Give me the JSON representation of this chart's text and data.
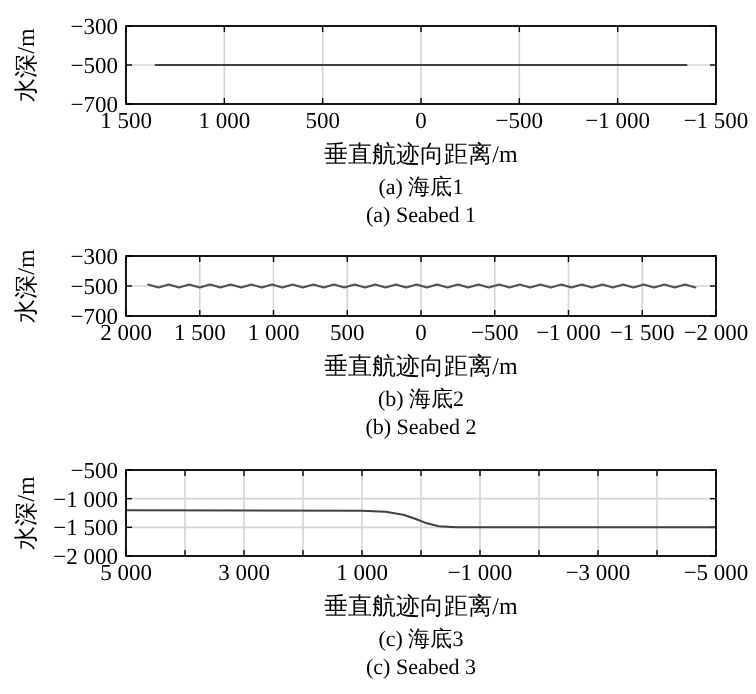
{
  "chart_data": [
    {
      "type": "line",
      "title": "(a) 海底1",
      "subtitle": "(a) Seabed 1",
      "xlabel": "垂直航迹向距离/m",
      "ylabel": "水深/m",
      "grid": true,
      "xlim": [
        1500,
        -1500
      ],
      "xticks": [
        {
          "value": 1500,
          "label": "1 500"
        },
        {
          "value": 1000,
          "label": "1 000"
        },
        {
          "value": 500,
          "label": "500"
        },
        {
          "value": 0,
          "label": "0"
        },
        {
          "value": -500,
          "label": "−500"
        },
        {
          "value": -1000,
          "label": "−1 000"
        },
        {
          "value": -1500,
          "label": "−1 500"
        }
      ],
      "ylim": [
        -700,
        -300
      ],
      "yticks": [
        {
          "value": -700,
          "label": "−700"
        },
        {
          "value": -500,
          "label": "−500"
        },
        {
          "value": -300,
          "label": "−300"
        }
      ],
      "series": [
        {
          "color": "#404040",
          "x": [
            1350,
            -1350
          ],
          "values": [
            -500,
            -500
          ]
        }
      ]
    },
    {
      "type": "line",
      "title": "(b) 海底2",
      "subtitle": "(b) Seabed 2",
      "xlabel": "垂直航迹向距离/m",
      "ylabel": "水深/m",
      "grid": true,
      "xlim": [
        2000,
        -2000
      ],
      "xticks": [
        {
          "value": 2000,
          "label": "2 000"
        },
        {
          "value": 1500,
          "label": "1 500"
        },
        {
          "value": 1000,
          "label": "1 000"
        },
        {
          "value": 500,
          "label": "500"
        },
        {
          "value": 0,
          "label": "0"
        },
        {
          "value": -500,
          "label": "−500"
        },
        {
          "value": -1000,
          "label": "−1 000"
        },
        {
          "value": -1500,
          "label": "−1 500"
        },
        {
          "value": -2000,
          "label": "−2 000"
        }
      ],
      "ylim": [
        -700,
        -300
      ],
      "yticks": [
        {
          "value": -700,
          "label": "−700"
        },
        {
          "value": -500,
          "label": "−500"
        },
        {
          "value": -300,
          "label": "−300"
        }
      ],
      "series": [
        {
          "color": "#505050",
          "x": [
            1850,
            1780,
            1710,
            1640,
            1570,
            1500,
            1430,
            1360,
            1290,
            1220,
            1150,
            1080,
            1010,
            940,
            870,
            800,
            730,
            660,
            590,
            520,
            450,
            380,
            310,
            240,
            170,
            100,
            30,
            -40,
            -110,
            -180,
            -250,
            -320,
            -390,
            -460,
            -530,
            -600,
            -670,
            -740,
            -810,
            -880,
            -950,
            -1020,
            -1090,
            -1160,
            -1230,
            -1300,
            -1370,
            -1440,
            -1510,
            -1580,
            -1650,
            -1720,
            -1790,
            -1860
          ],
          "values": [
            -490,
            -510,
            -490,
            -510,
            -490,
            -510,
            -490,
            -510,
            -490,
            -510,
            -490,
            -510,
            -490,
            -510,
            -490,
            -510,
            -490,
            -510,
            -490,
            -510,
            -490,
            -510,
            -490,
            -510,
            -490,
            -510,
            -490,
            -510,
            -490,
            -510,
            -490,
            -510,
            -490,
            -510,
            -490,
            -510,
            -490,
            -510,
            -490,
            -510,
            -490,
            -510,
            -490,
            -510,
            -490,
            -510,
            -490,
            -510,
            -490,
            -510,
            -490,
            -510,
            -490,
            -510
          ]
        }
      ]
    },
    {
      "type": "line",
      "title": "(c) 海底3",
      "subtitle": "(c) Seabed 3",
      "xlabel": "垂直航迹向距离/m",
      "ylabel": "水深/m",
      "grid": true,
      "xlim": [
        5000,
        -5000
      ],
      "xticks": [
        {
          "value": 5000,
          "label": "5 000"
        },
        {
          "value": 4000,
          "label": null
        },
        {
          "value": 3000,
          "label": "3 000"
        },
        {
          "value": 2000,
          "label": null
        },
        {
          "value": 1000,
          "label": "1 000"
        },
        {
          "value": 0,
          "label": null
        },
        {
          "value": -1000,
          "label": "−1 000"
        },
        {
          "value": -2000,
          "label": null
        },
        {
          "value": -3000,
          "label": "−3 000"
        },
        {
          "value": -4000,
          "label": null
        },
        {
          "value": -5000,
          "label": "−5 000"
        }
      ],
      "ylim": [
        -2000,
        -500
      ],
      "yticks": [
        {
          "value": -2000,
          "label": "−2 000"
        },
        {
          "value": -1500,
          "label": "−1 500"
        },
        {
          "value": -1000,
          "label": "−1 000"
        },
        {
          "value": -500,
          "label": "−500"
        }
      ],
      "series": [
        {
          "color": "#404040",
          "x": [
            5000,
            1000,
            600,
            300,
            100,
            -100,
            -300,
            -600,
            -5000
          ],
          "values": [
            -1200,
            -1210,
            -1230,
            -1280,
            -1350,
            -1430,
            -1480,
            -1500,
            -1500
          ]
        }
      ]
    }
  ]
}
